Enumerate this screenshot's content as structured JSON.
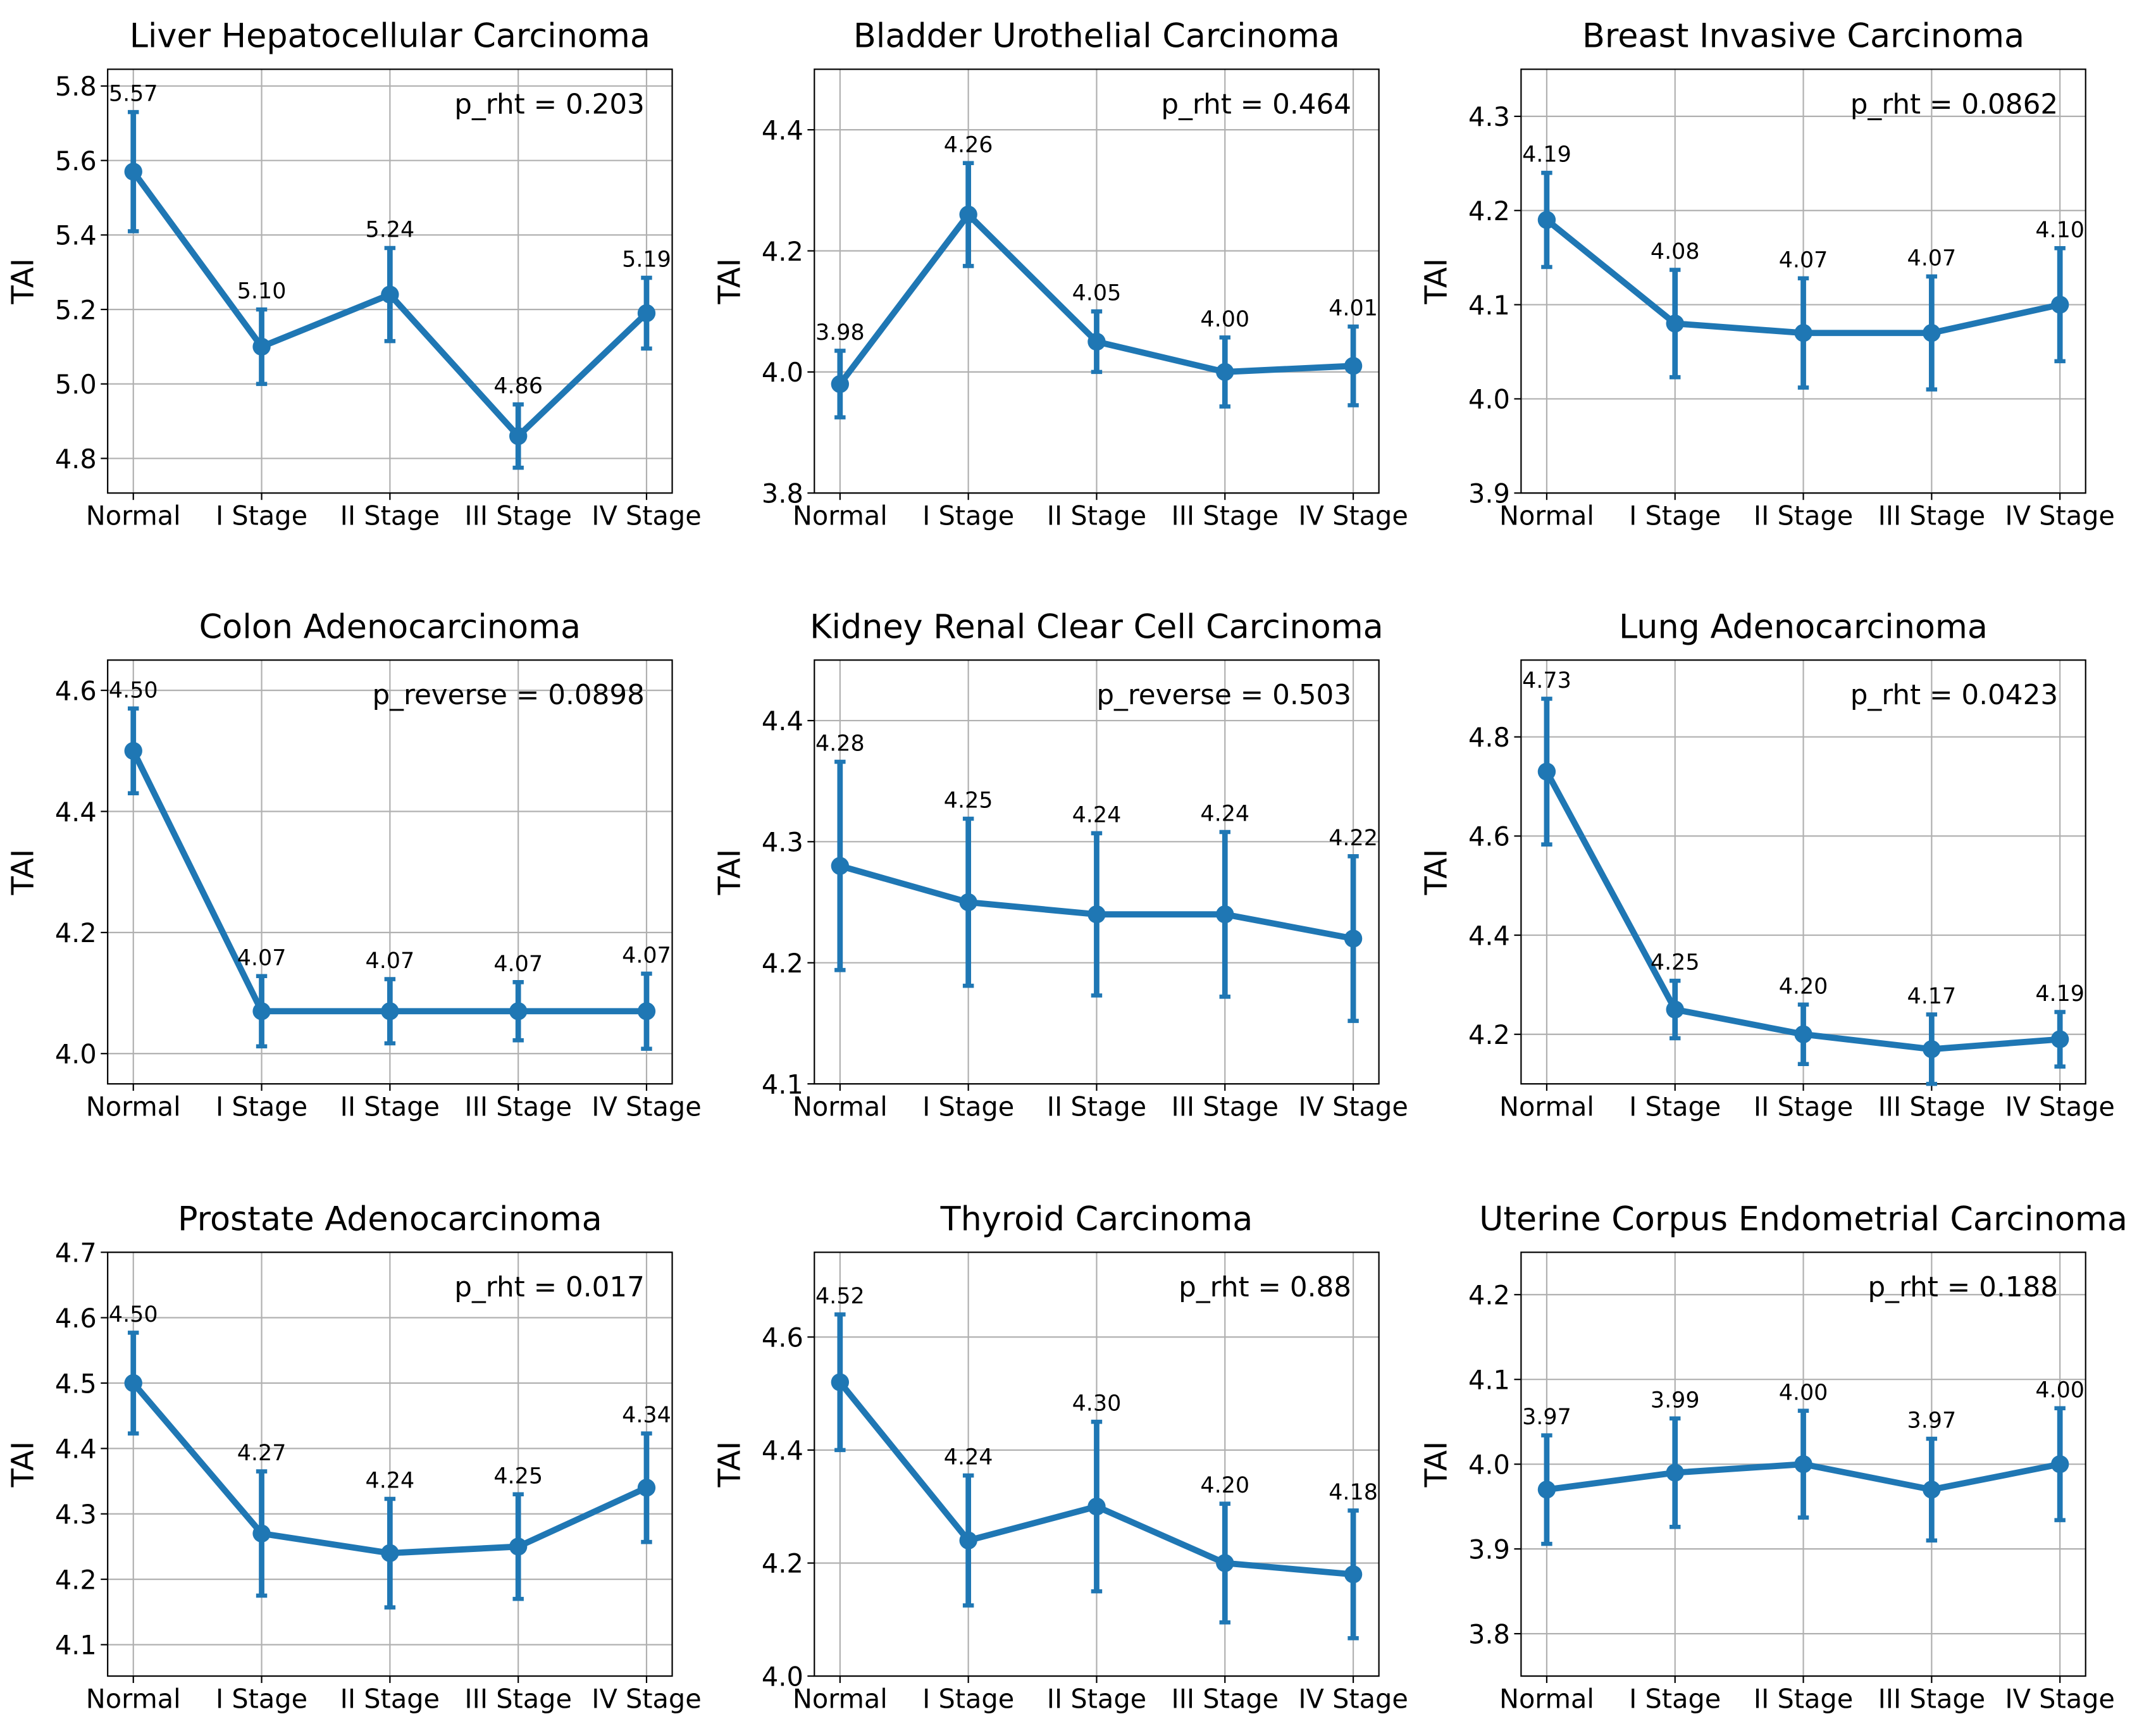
{
  "chart_data": [
    {
      "type": "line",
      "title": "Liver Hepatocellular Carcinoma",
      "ylabel": "TAI",
      "annotation": "p_rht = 0.203",
      "color": "#1f77b4",
      "grid": true,
      "categories": [
        "Normal",
        "I Stage",
        "II Stage",
        "III Stage",
        "IV Stage"
      ],
      "values": [
        5.57,
        5.1,
        5.24,
        4.86,
        5.19
      ],
      "value_labels": [
        "5.57",
        "5.10",
        "5.24",
        "4.86",
        "5.19"
      ],
      "errors": [
        0.16,
        0.1,
        0.125,
        0.085,
        0.095
      ],
      "ylim": [
        4.707,
        5.845
      ],
      "yticks": [
        4.8,
        {
          "value": 5,
          "label": "5.0"
        },
        5.2,
        5.4,
        5.6,
        5.8
      ]
    },
    {
      "type": "line",
      "title": "Bladder Urothelial Carcinoma",
      "ylabel": "TAI",
      "annotation": "p_rht = 0.464",
      "color": "#1f77b4",
      "grid": true,
      "categories": [
        "Normal",
        "I Stage",
        "II Stage",
        "III Stage",
        "IV Stage"
      ],
      "values": [
        3.98,
        4.26,
        4.05,
        4.0,
        4.01
      ],
      "value_labels": [
        "3.98",
        "4.26",
        "4.05",
        "4.00",
        "4.01"
      ],
      "errors": [
        0.055,
        0.085,
        0.05,
        0.057,
        0.065
      ],
      "ylim": [
        3.8,
        4.5
      ],
      "yticks": [
        3.8,
        {
          "value": 4,
          "label": "4.0"
        },
        4.2,
        4.4
      ]
    },
    {
      "type": "line",
      "title": "Breast Invasive Carcinoma",
      "ylabel": "TAI",
      "annotation": "p_rht = 0.0862",
      "color": "#1f77b4",
      "grid": true,
      "categories": [
        "Normal",
        "I Stage",
        "II Stage",
        "III Stage",
        "IV Stage"
      ],
      "values": [
        4.19,
        4.08,
        4.07,
        4.07,
        4.1
      ],
      "value_labels": [
        "4.19",
        "4.08",
        "4.07",
        "4.07",
        "4.10"
      ],
      "errors": [
        0.05,
        0.057,
        0.058,
        0.06,
        0.06
      ],
      "ylim": [
        3.9,
        4.35
      ],
      "yticks": [
        3.9,
        {
          "value": 4,
          "label": "4.0"
        },
        4.1,
        4.2,
        4.3
      ]
    },
    {
      "type": "line",
      "title": "Colon Adenocarcinoma",
      "ylabel": "TAI",
      "annotation": "p_reverse = 0.0898",
      "color": "#1f77b4",
      "grid": true,
      "categories": [
        "Normal",
        "I Stage",
        "II Stage",
        "III Stage",
        "IV Stage"
      ],
      "values": [
        4.5,
        4.07,
        4.07,
        4.07,
        4.07
      ],
      "value_labels": [
        "4.50",
        "4.07",
        "4.07",
        "4.07",
        "4.07"
      ],
      "errors": [
        0.07,
        0.058,
        0.053,
        0.048,
        0.062
      ],
      "ylim": [
        3.95,
        4.65
      ],
      "yticks": [
        {
          "value": 4,
          "label": "4.0"
        },
        4.2,
        4.4,
        4.6
      ]
    },
    {
      "type": "line",
      "title": "Kidney Renal Clear Cell Carcinoma",
      "ylabel": "TAI",
      "annotation": "p_reverse = 0.503",
      "color": "#1f77b4",
      "grid": true,
      "categories": [
        "Normal",
        "I Stage",
        "II Stage",
        "III Stage",
        "IV Stage"
      ],
      "values": [
        4.28,
        4.25,
        4.24,
        4.24,
        4.22
      ],
      "value_labels": [
        "4.28",
        "4.25",
        "4.24",
        "4.24",
        "4.22"
      ],
      "errors": [
        0.086,
        0.069,
        0.067,
        0.068,
        0.068
      ],
      "ylim": [
        4.1,
        4.45
      ],
      "yticks": [
        4.1,
        4.2,
        4.3,
        4.4
      ]
    },
    {
      "type": "line",
      "title": "Lung Adenocarcinoma",
      "ylabel": "TAI",
      "annotation": "p_rht = 0.0423",
      "color": "#1f77b4",
      "grid": true,
      "categories": [
        "Normal",
        "I Stage",
        "II Stage",
        "III Stage",
        "IV Stage"
      ],
      "values": [
        4.73,
        4.25,
        4.2,
        4.17,
        4.19
      ],
      "value_labels": [
        "4.73",
        "4.25",
        "4.20",
        "4.17",
        "4.19"
      ],
      "errors": [
        0.147,
        0.058,
        0.06,
        0.07,
        0.055
      ],
      "ylim": [
        4.1,
        4.955
      ],
      "yticks": [
        4.2,
        4.4,
        4.6,
        4.8
      ]
    },
    {
      "type": "line",
      "title": "Prostate Adenocarcinoma",
      "ylabel": "TAI",
      "annotation": "p_rht = 0.017",
      "color": "#1f77b4",
      "grid": true,
      "categories": [
        "Normal",
        "I Stage",
        "II Stage",
        "III Stage",
        "IV Stage"
      ],
      "values": [
        4.5,
        4.27,
        4.24,
        4.25,
        4.34
      ],
      "value_labels": [
        "4.50",
        "4.27",
        "4.24",
        "4.25",
        "4.34"
      ],
      "errors": [
        0.077,
        0.095,
        0.083,
        0.08,
        0.083
      ],
      "ylim": [
        4.052,
        4.7
      ],
      "yticks": [
        4.1,
        4.2,
        4.3,
        4.4,
        4.5,
        4.6,
        4.7
      ]
    },
    {
      "type": "line",
      "title": "Thyroid Carcinoma",
      "ylabel": "TAI",
      "annotation": "p_rht = 0.88",
      "color": "#1f77b4",
      "grid": true,
      "categories": [
        "Normal",
        "I Stage",
        "II Stage",
        "III Stage",
        "IV Stage"
      ],
      "values": [
        4.52,
        4.24,
        4.3,
        4.2,
        4.18
      ],
      "value_labels": [
        "4.52",
        "4.24",
        "4.30",
        "4.20",
        "4.18"
      ],
      "errors": [
        0.12,
        0.115,
        0.15,
        0.105,
        0.113
      ],
      "ylim": [
        4.0,
        4.75
      ],
      "yticks": [
        {
          "value": 4,
          "label": "4.0"
        },
        4.2,
        4.4,
        4.6
      ]
    },
    {
      "type": "line",
      "title": "Uterine Corpus Endometrial Carcinoma",
      "ylabel": "TAI",
      "annotation": "p_rht = 0.188",
      "color": "#1f77b4",
      "grid": true,
      "categories": [
        "Normal",
        "I Stage",
        "II Stage",
        "III Stage",
        "IV Stage"
      ],
      "values": [
        3.97,
        3.99,
        4.0,
        3.97,
        4.0
      ],
      "value_labels": [
        "3.97",
        "3.99",
        "4.00",
        "3.97",
        "4.00"
      ],
      "errors": [
        0.064,
        0.064,
        0.063,
        0.06,
        0.066
      ],
      "ylim": [
        3.75,
        4.25
      ],
      "yticks": [
        3.8,
        3.9,
        {
          "value": 4,
          "label": "4.0"
        },
        4.1,
        4.2
      ]
    }
  ]
}
